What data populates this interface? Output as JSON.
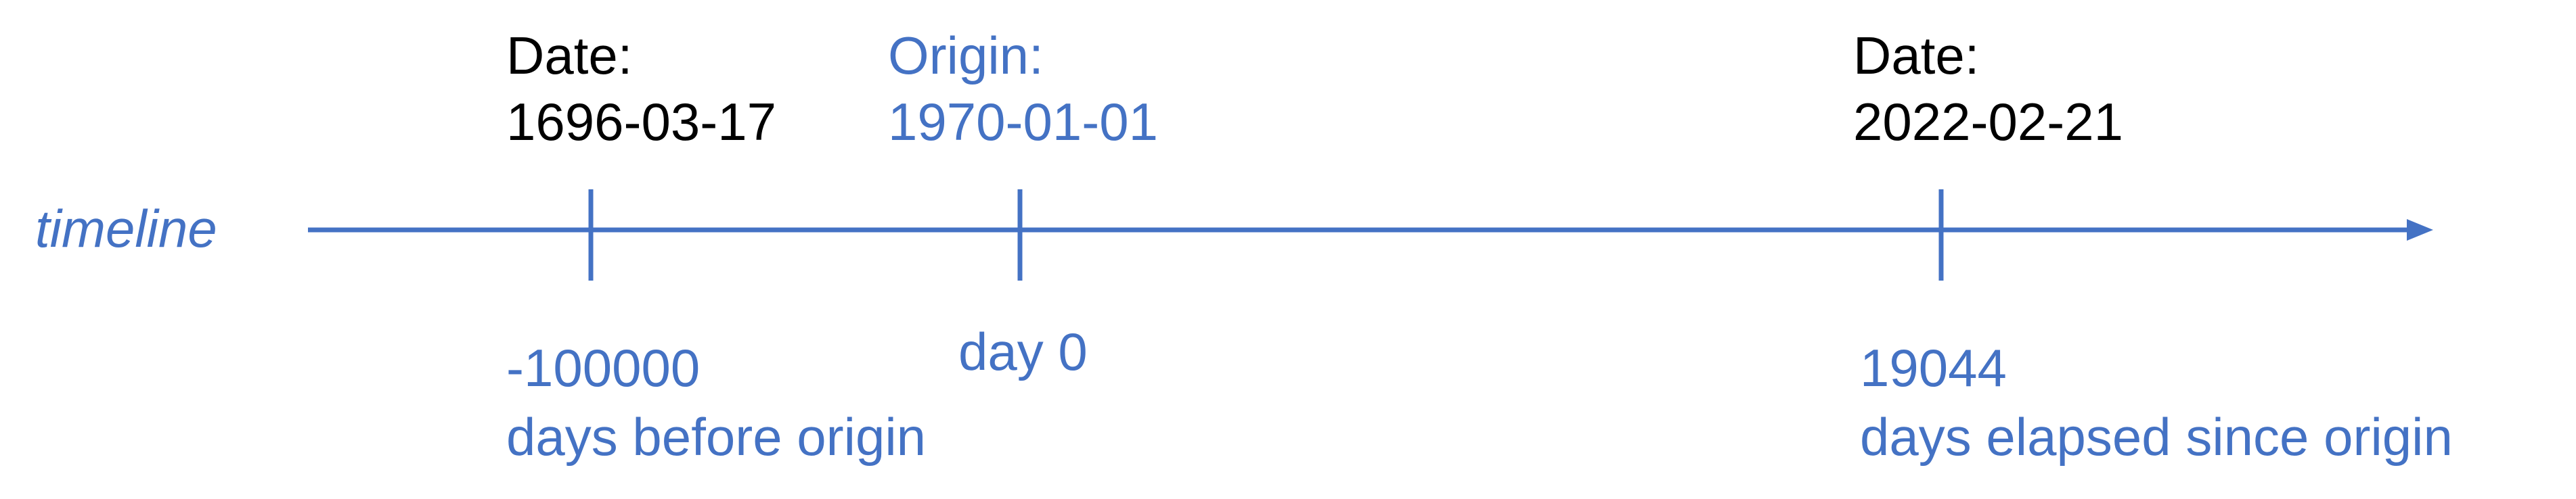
{
  "axis": {
    "label": "timeline",
    "color": "#4472c4"
  },
  "markers": [
    {
      "id": "date-1696",
      "top_heading": "Date:",
      "top_value": "1696-03-17",
      "bottom_value": "-100000",
      "bottom_caption": "days before origin",
      "top_color": "#000000"
    },
    {
      "id": "origin",
      "top_heading": "Origin:",
      "top_value": "1970-01-01",
      "bottom_value": "day 0",
      "bottom_caption": "",
      "top_color": "#4472c4"
    },
    {
      "id": "date-2022",
      "top_heading": "Date:",
      "top_value": "2022-02-21",
      "bottom_value": "19044",
      "bottom_caption": "days elapsed since origin",
      "top_color": "#000000"
    }
  ],
  "colors": {
    "text_dark": "#000000",
    "accent": "#4472c4"
  }
}
